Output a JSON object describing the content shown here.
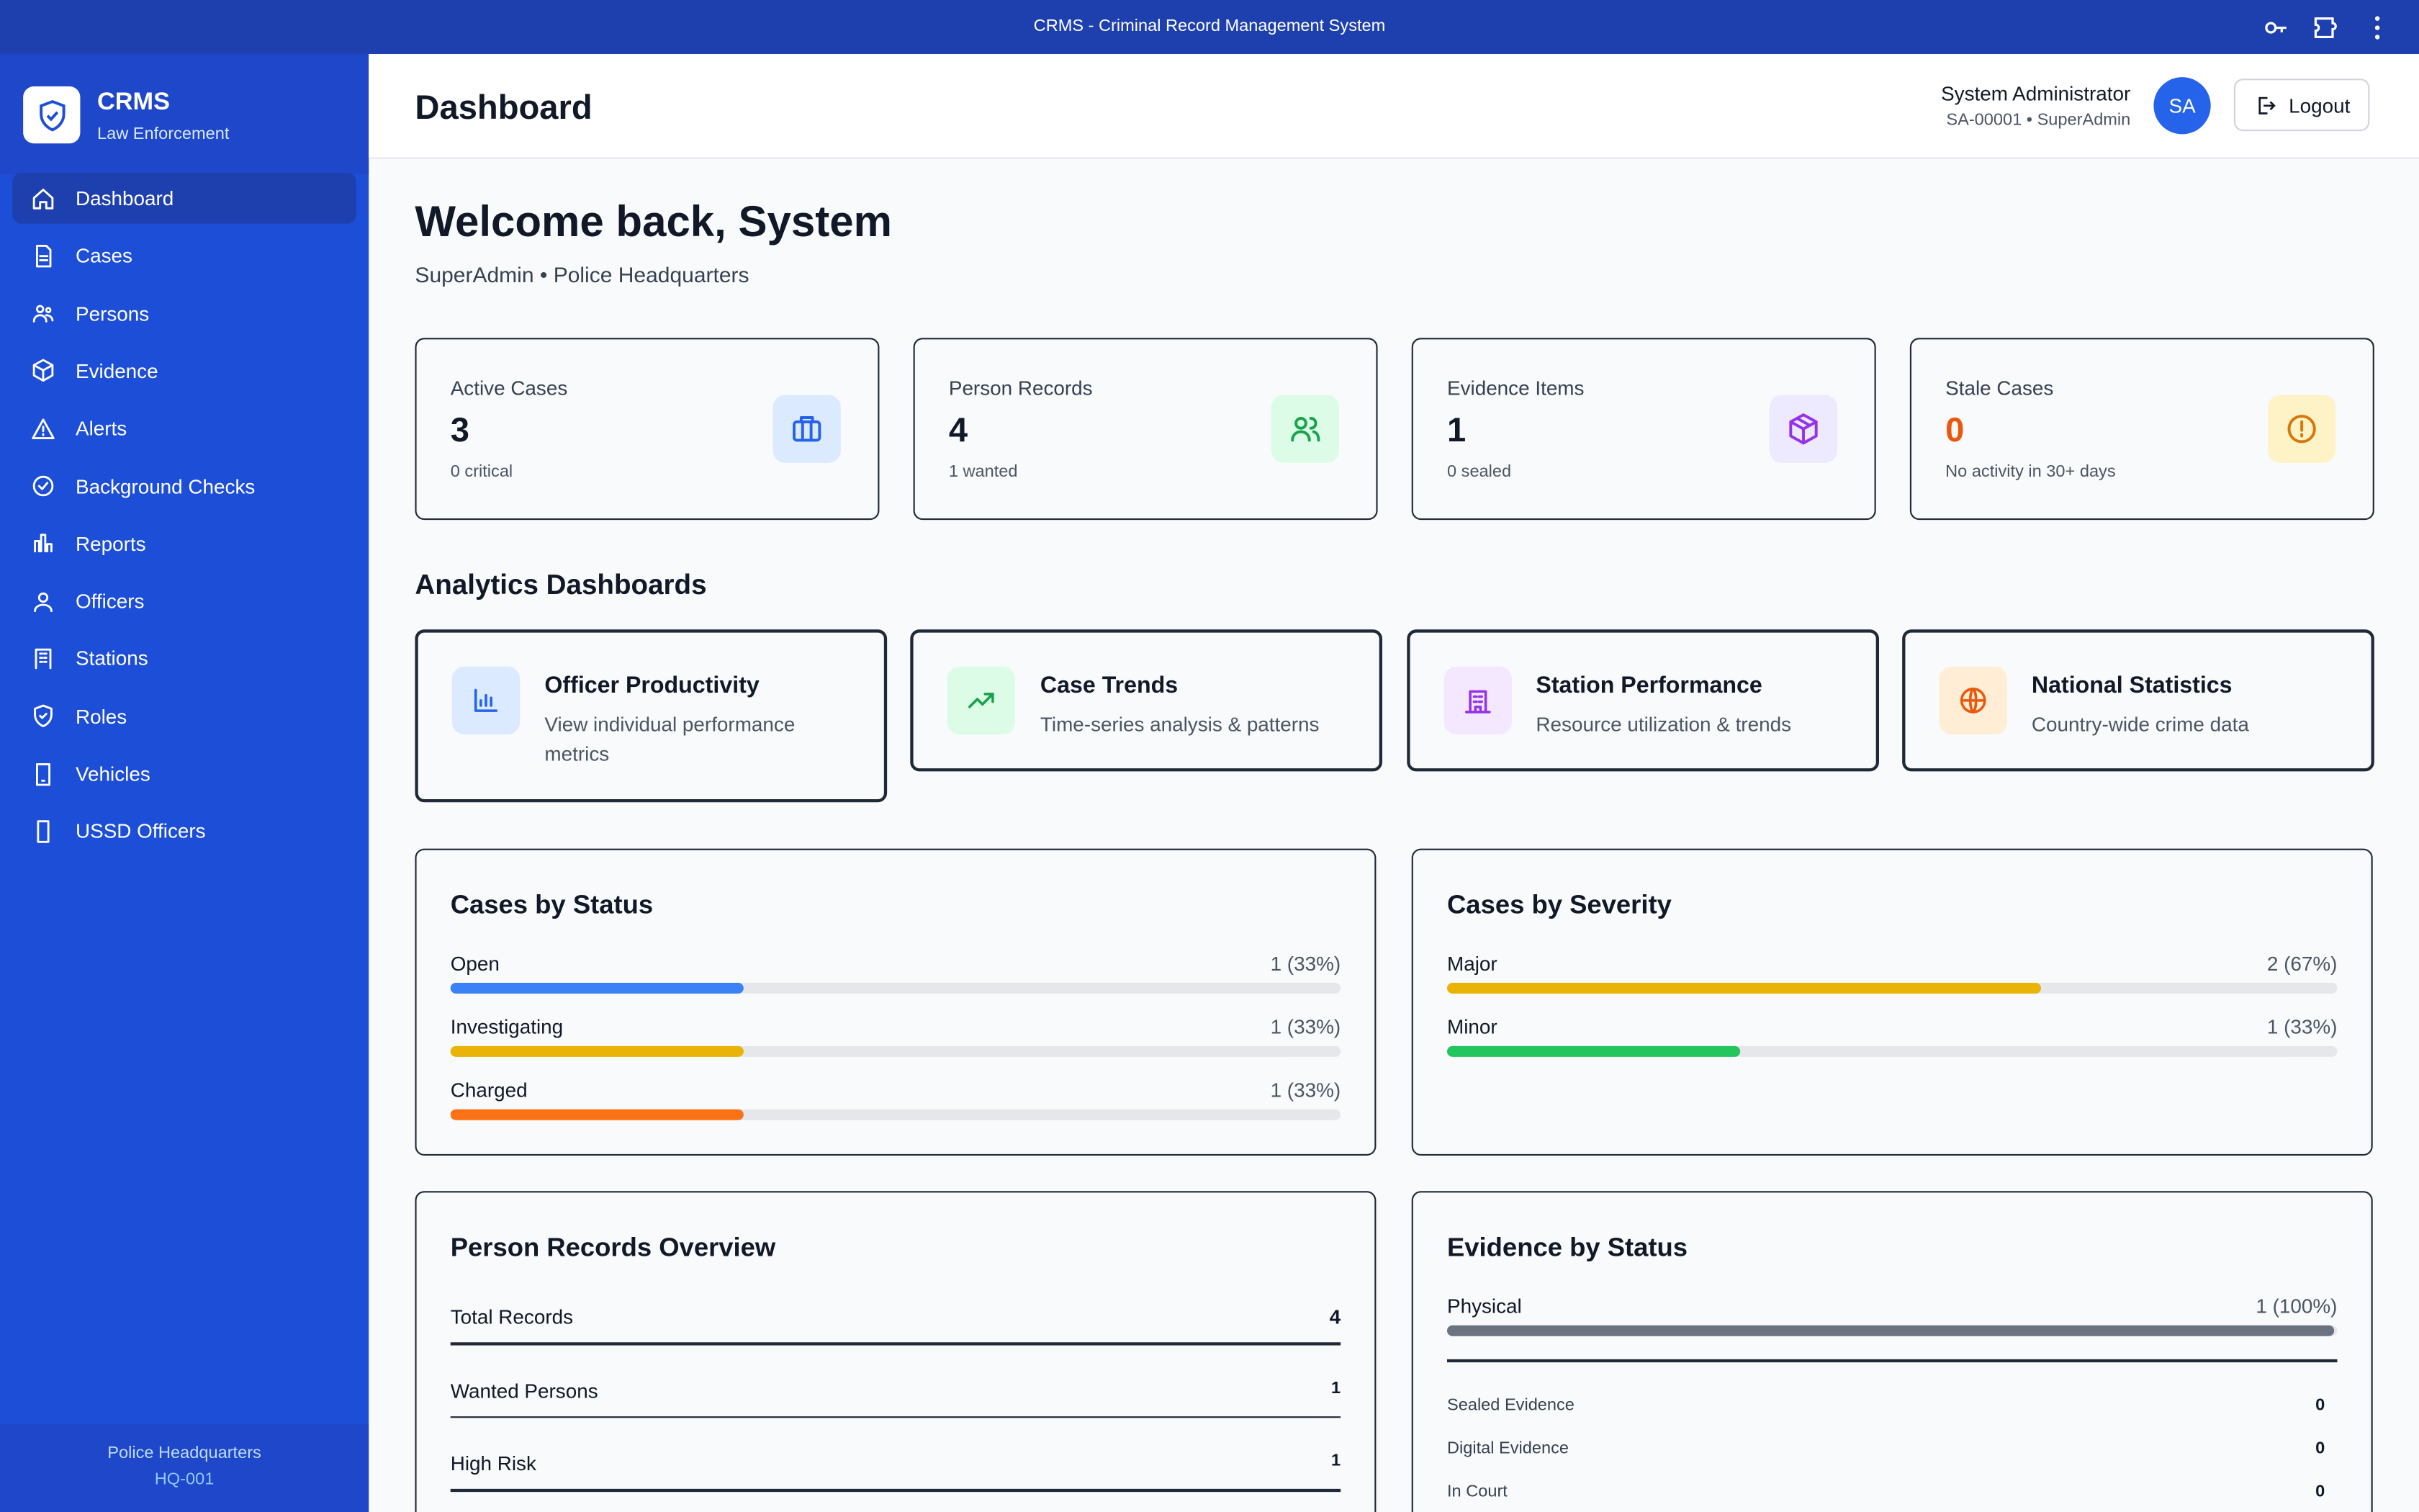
{
  "window": {
    "title": "CRMS - Criminal Record Management System"
  },
  "sidebar": {
    "brand": "CRMS",
    "tagline": "Law Enforcement",
    "nav": [
      "Dashboard",
      "Cases",
      "Persons",
      "Evidence",
      "Alerts",
      "Background Checks",
      "Reports",
      "Officers",
      "Stations",
      "Roles",
      "Vehicles",
      "USSD Officers"
    ],
    "footer": {
      "station": "Police Headquarters",
      "code": "HQ-001"
    }
  },
  "header": {
    "title": "Dashboard",
    "user_name": "System Administrator",
    "user_meta": "SA-00001 • SuperAdmin",
    "avatar": "SA",
    "logout": "Logout"
  },
  "welcome": {
    "title": "Welcome back, System",
    "subtitle": "SuperAdmin • Police Headquarters"
  },
  "stats": [
    {
      "label": "Active Cases",
      "value": 3,
      "note": "0 critical"
    },
    {
      "label": "Person Records",
      "value": 4,
      "note": "1 wanted"
    },
    {
      "label": "Evidence Items",
      "value": 1,
      "note": "0 sealed"
    },
    {
      "label": "Stale Cases",
      "value": 0,
      "note": "No activity in 30+ days"
    }
  ],
  "analytics": {
    "title": "Analytics Dashboards",
    "cards": [
      {
        "title": "Officer Productivity",
        "description": "View individual performance metrics"
      },
      {
        "title": "Case Trends",
        "description": "Time-series analysis & patterns"
      },
      {
        "title": "Station Performance",
        "description": "Resource utilization & trends"
      },
      {
        "title": "National Statistics",
        "description": "Country-wide crime data"
      }
    ]
  },
  "cases_by_status": {
    "title": "Cases by Status",
    "rows": [
      {
        "label": "Open",
        "value_label": "1 (33%)",
        "percent": 33,
        "color": "#3b82f6"
      },
      {
        "label": "Investigating",
        "value_label": "1 (33%)",
        "percent": 33,
        "color": "#eab308"
      },
      {
        "label": "Charged",
        "value_label": "1 (33%)",
        "percent": 33,
        "color": "#f97316"
      }
    ]
  },
  "cases_by_severity": {
    "title": "Cases by Severity",
    "rows": [
      {
        "label": "Major",
        "value_label": "2 (67%)",
        "percent": 67,
        "color": "#eab308"
      },
      {
        "label": "Minor",
        "value_label": "1 (33%)",
        "percent": 33,
        "color": "#22c55e"
      }
    ]
  },
  "person_records": {
    "title": "Person Records Overview",
    "rows": [
      {
        "label": "Total Records",
        "value": 4
      },
      {
        "label": "Wanted Persons",
        "value": 1
      },
      {
        "label": "High Risk",
        "value": 1
      }
    ]
  },
  "evidence_by_status": {
    "title": "Evidence by Status",
    "rows": [
      {
        "label": "Physical",
        "value_label": "1 (100%)",
        "percent": 100,
        "color": "#6b7280"
      }
    ],
    "counts": [
      {
        "label": "Sealed Evidence",
        "value": 0
      },
      {
        "label": "Digital Evidence",
        "value": 0
      },
      {
        "label": "In Court",
        "value": 0
      }
    ]
  }
}
